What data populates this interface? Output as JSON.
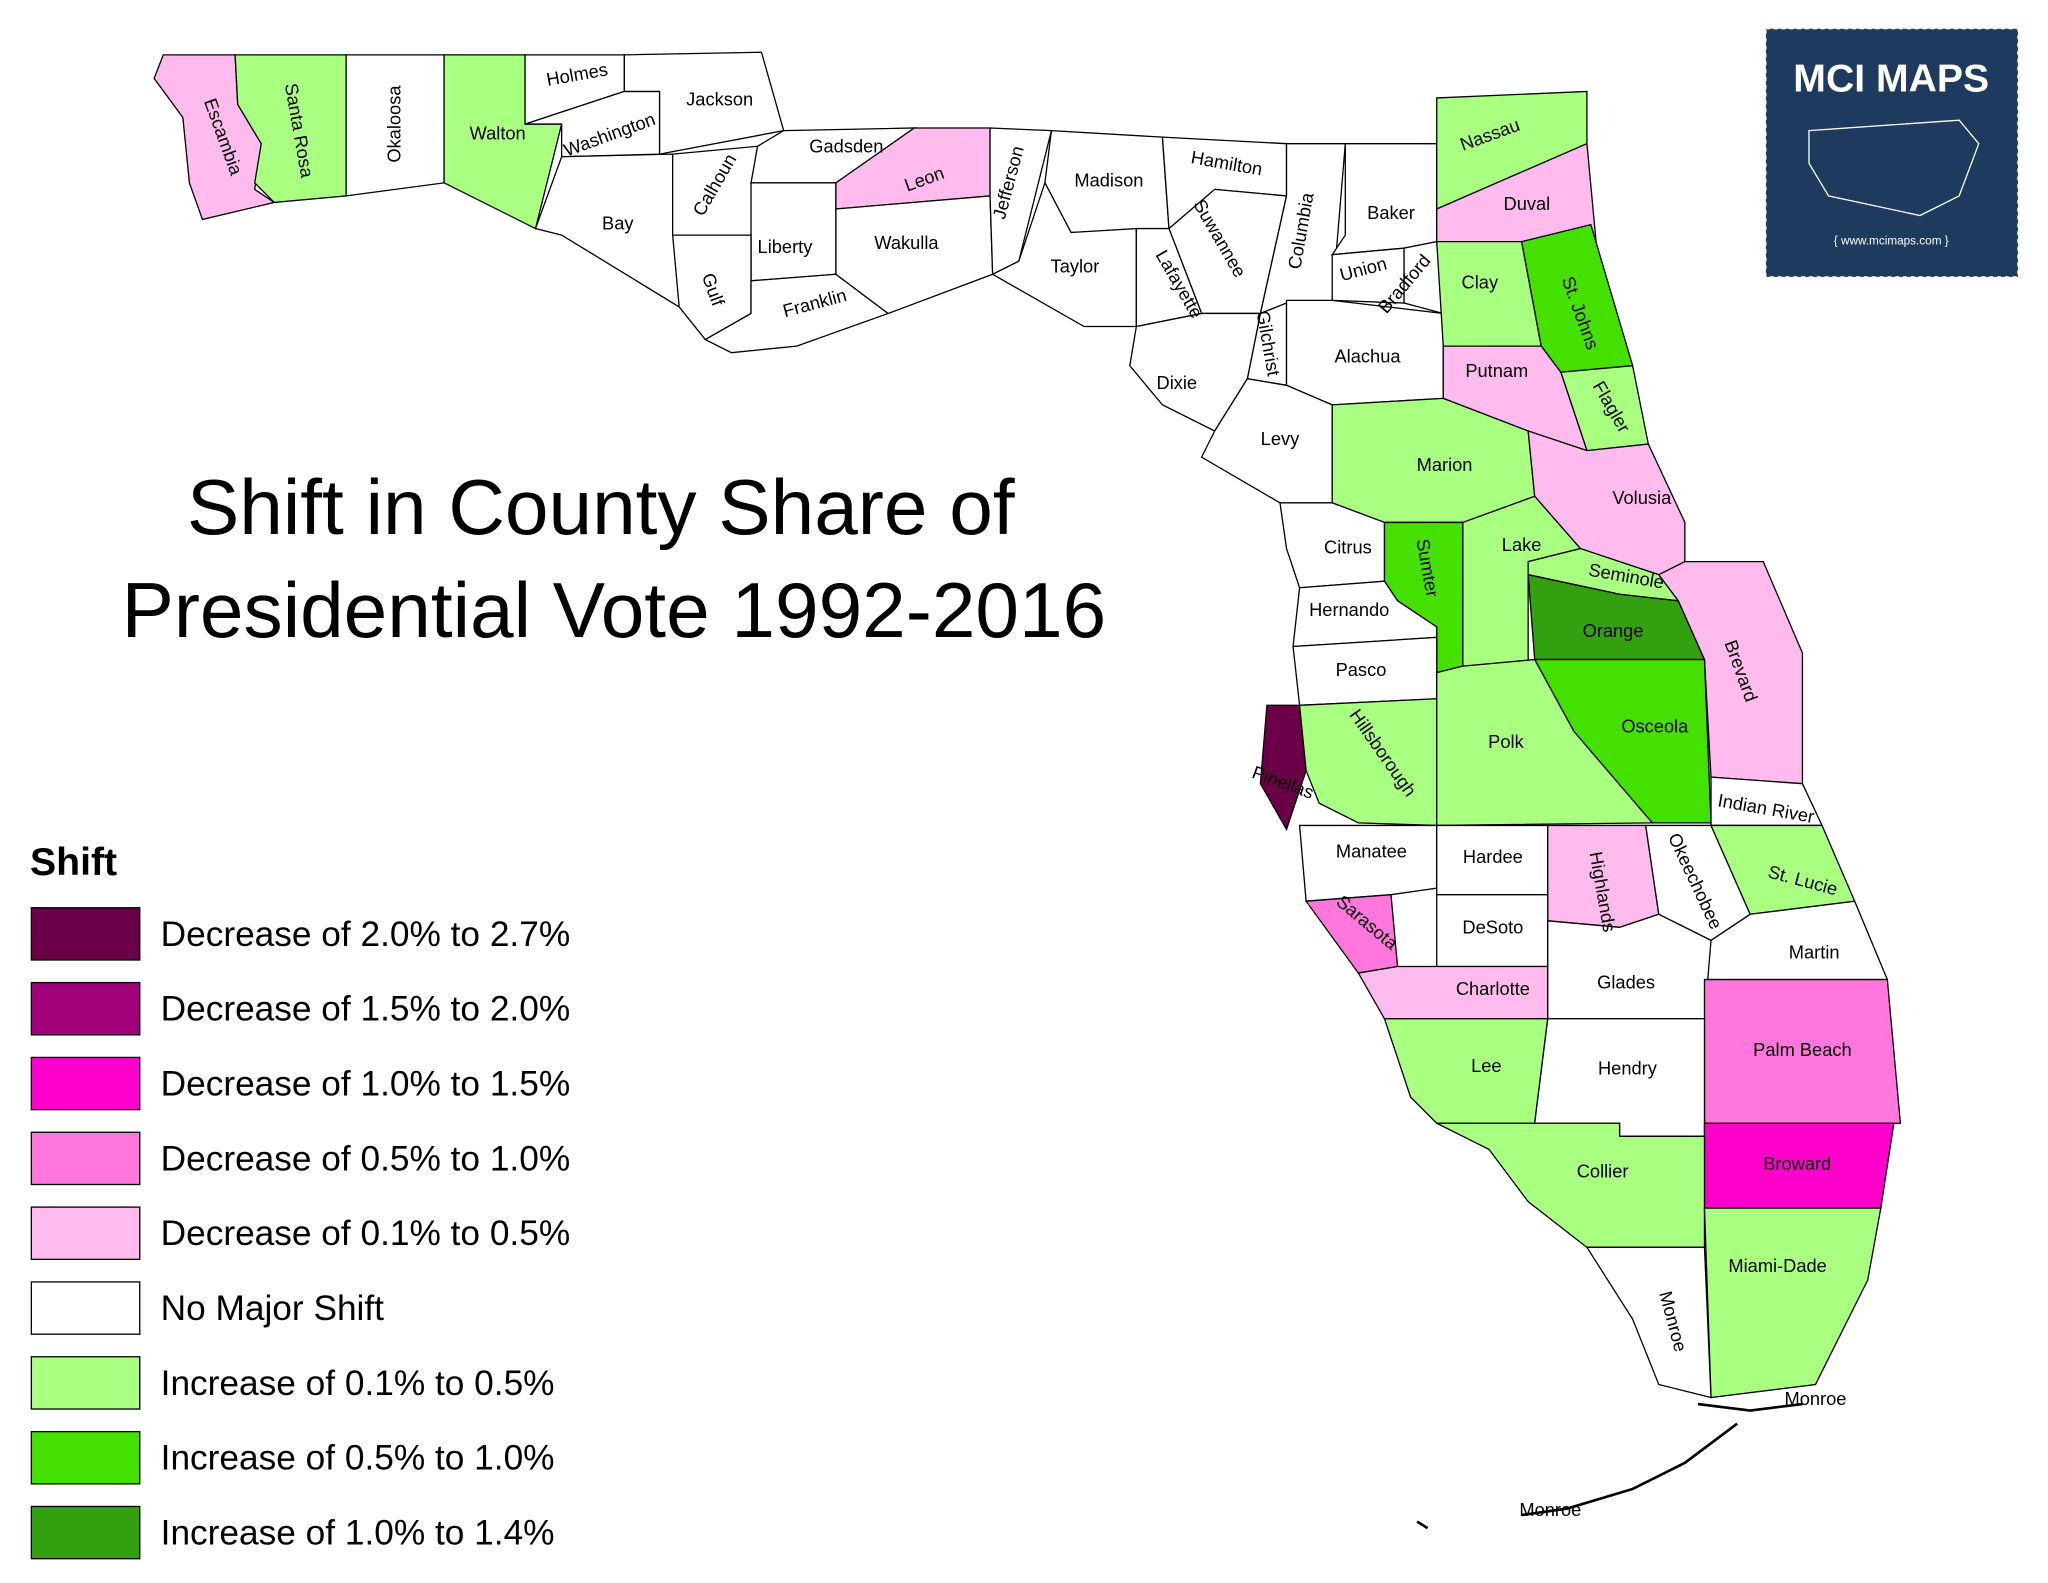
{
  "title": [
    "Shift in County Share of",
    "Presidential Vote 1992-2016"
  ],
  "logo": {
    "name": "MCI MAPS",
    "url": "{ www.mcimaps.com }"
  },
  "legend": {
    "title": "Shift",
    "items": [
      {
        "label": "Decrease of 2.0% to 2.7%",
        "color": "#6b0048"
      },
      {
        "label": "Decrease of 1.5% to 2.0%",
        "color": "#a0007a"
      },
      {
        "label": "Decrease of 1.0% to 1.5%",
        "color": "#ff00cc"
      },
      {
        "label": "Decrease of 0.5% to 1.0%",
        "color": "#ff77dd"
      },
      {
        "label": "Decrease of 0.1% to 0.5%",
        "color": "#ffbbee"
      },
      {
        "label": "No Major Shift",
        "color": "#ffffff"
      },
      {
        "label": "Increase of 0.1% to 0.5%",
        "color": "#a8ff80"
      },
      {
        "label": "Increase of 0.5% to 1.0%",
        "color": "#44e000"
      },
      {
        "label": "Increase of 1.0% to 1.4%",
        "color": "#33a010"
      }
    ]
  },
  "counties": [
    {
      "name": "Escambia",
      "color": "#ffbbee"
    },
    {
      "name": "Santa Rosa",
      "color": "#a8ff80"
    },
    {
      "name": "Okaloosa",
      "color": "#ffffff"
    },
    {
      "name": "Walton",
      "color": "#a8ff80"
    },
    {
      "name": "Holmes",
      "color": "#ffffff"
    },
    {
      "name": "Washington",
      "color": "#ffffff"
    },
    {
      "name": "Jackson",
      "color": "#ffffff"
    },
    {
      "name": "Bay",
      "color": "#ffffff"
    },
    {
      "name": "Calhoun",
      "color": "#ffffff"
    },
    {
      "name": "Gadsden",
      "color": "#ffffff"
    },
    {
      "name": "Liberty",
      "color": "#ffffff"
    },
    {
      "name": "Gulf",
      "color": "#ffffff"
    },
    {
      "name": "Franklin",
      "color": "#ffffff"
    },
    {
      "name": "Leon",
      "color": "#ffbbee"
    },
    {
      "name": "Wakulla",
      "color": "#ffffff"
    },
    {
      "name": "Jefferson",
      "color": "#ffffff"
    },
    {
      "name": "Madison",
      "color": "#ffffff"
    },
    {
      "name": "Taylor",
      "color": "#ffffff"
    },
    {
      "name": "Hamilton",
      "color": "#ffffff"
    },
    {
      "name": "Suwannee",
      "color": "#ffffff"
    },
    {
      "name": "Lafayette",
      "color": "#ffffff"
    },
    {
      "name": "Columbia",
      "color": "#ffffff"
    },
    {
      "name": "Baker",
      "color": "#ffffff"
    },
    {
      "name": "Union",
      "color": "#ffffff"
    },
    {
      "name": "Bradford",
      "color": "#ffffff"
    },
    {
      "name": "Gilchrist",
      "color": "#ffffff"
    },
    {
      "name": "Dixie",
      "color": "#ffffff"
    },
    {
      "name": "Alachua",
      "color": "#ffffff"
    },
    {
      "name": "Levy",
      "color": "#ffffff"
    },
    {
      "name": "Nassau",
      "color": "#a8ff80"
    },
    {
      "name": "Duval",
      "color": "#ffbbee"
    },
    {
      "name": "Clay",
      "color": "#a8ff80"
    },
    {
      "name": "St. Johns",
      "color": "#44e000"
    },
    {
      "name": "Flagler",
      "color": "#a8ff80"
    },
    {
      "name": "Putnam",
      "color": "#ffbbee"
    },
    {
      "name": "Marion",
      "color": "#a8ff80"
    },
    {
      "name": "Volusia",
      "color": "#ffbbee"
    },
    {
      "name": "Citrus",
      "color": "#ffffff"
    },
    {
      "name": "Sumter",
      "color": "#44e000"
    },
    {
      "name": "Lake",
      "color": "#a8ff80"
    },
    {
      "name": "Seminole",
      "color": "#a8ff80"
    },
    {
      "name": "Orange",
      "color": "#33a010"
    },
    {
      "name": "Brevard",
      "color": "#ffbbee"
    },
    {
      "name": "Osceola",
      "color": "#44e000"
    },
    {
      "name": "Hernando",
      "color": "#ffffff"
    },
    {
      "name": "Pasco",
      "color": "#ffffff"
    },
    {
      "name": "Pinellas",
      "color": "#6b0048"
    },
    {
      "name": "Hillsborough",
      "color": "#a8ff80"
    },
    {
      "name": "Polk",
      "color": "#a8ff80"
    },
    {
      "name": "Indian River",
      "color": "#ffffff"
    },
    {
      "name": "Manatee",
      "color": "#ffffff"
    },
    {
      "name": "Hardee",
      "color": "#ffffff"
    },
    {
      "name": "Highlands",
      "color": "#ffbbee"
    },
    {
      "name": "Okeechobee",
      "color": "#ffffff"
    },
    {
      "name": "St. Lucie",
      "color": "#a8ff80"
    },
    {
      "name": "Sarasota",
      "color": "#ff77dd"
    },
    {
      "name": "DeSoto",
      "color": "#ffffff"
    },
    {
      "name": "Martin",
      "color": "#ffffff"
    },
    {
      "name": "Charlotte",
      "color": "#ffbbee"
    },
    {
      "name": "Glades",
      "color": "#ffffff"
    },
    {
      "name": "Palm Beach",
      "color": "#ff77dd"
    },
    {
      "name": "Lee",
      "color": "#a8ff80"
    },
    {
      "name": "Hendry",
      "color": "#ffffff"
    },
    {
      "name": "Broward",
      "color": "#ff00cc"
    },
    {
      "name": "Collier",
      "color": "#a8ff80"
    },
    {
      "name": "Miami-Dade",
      "color": "#a8ff80"
    },
    {
      "name": "Monroe",
      "color": "#ffffff"
    }
  ]
}
